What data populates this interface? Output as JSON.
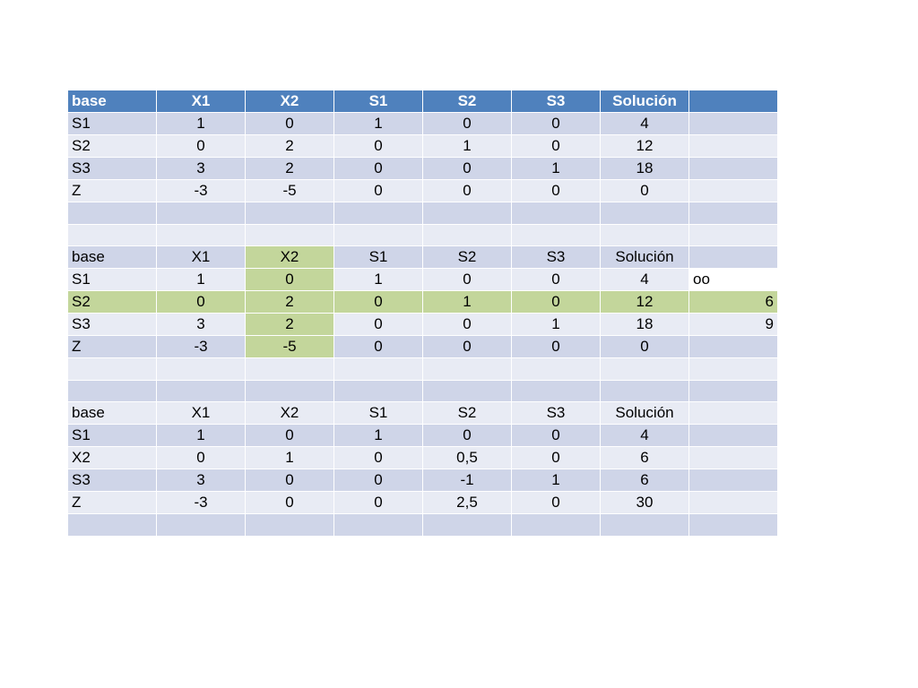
{
  "colors": {
    "header_bg": "#4f81bd",
    "header_text": "#ffffff",
    "band_dark": "#cfd5e8",
    "band_light": "#e8ebf4",
    "highlight_green": "#c3d69b"
  },
  "rows": [
    {
      "kind": "header",
      "cells": [
        "base",
        "X1",
        "X2",
        "S1",
        "S2",
        "S3",
        "Solución",
        ""
      ]
    },
    {
      "kind": "data",
      "cells": [
        "S1",
        "1",
        "0",
        "1",
        "0",
        "0",
        "4",
        ""
      ]
    },
    {
      "kind": "data",
      "cells": [
        "S2",
        "0",
        "2",
        "0",
        "1",
        "0",
        "12",
        ""
      ]
    },
    {
      "kind": "data",
      "cells": [
        "S3",
        "3",
        "2",
        "0",
        "0",
        "1",
        "18",
        ""
      ]
    },
    {
      "kind": "data",
      "cells": [
        "Z",
        "-3",
        "-5",
        "0",
        "0",
        "0",
        "0",
        ""
      ]
    },
    {
      "kind": "blank",
      "cells": [
        "",
        "",
        "",
        "",
        "",
        "",
        "",
        ""
      ]
    },
    {
      "kind": "blank",
      "cells": [
        "",
        "",
        "",
        "",
        "",
        "",
        "",
        ""
      ]
    },
    {
      "kind": "data",
      "cells": [
        "base",
        "X1",
        "X2",
        "S1",
        "S2",
        "S3",
        "Solución",
        ""
      ],
      "highlight": [
        2
      ]
    },
    {
      "kind": "data",
      "cells": [
        "S1",
        "1",
        "0",
        "1",
        "0",
        "0",
        "4",
        "oo"
      ],
      "highlight": [
        2
      ],
      "no_bg": [
        7
      ],
      "last_align": "left"
    },
    {
      "kind": "data",
      "cells": [
        "S2",
        "0",
        "2",
        "0",
        "1",
        "0",
        "12",
        "6"
      ],
      "highlight": [
        0,
        1,
        2,
        3,
        4,
        5,
        6,
        7
      ],
      "last_align": "right"
    },
    {
      "kind": "data",
      "cells": [
        "S3",
        "3",
        "2",
        "0",
        "0",
        "1",
        "18",
        "9"
      ],
      "highlight": [
        2
      ],
      "last_align": "right"
    },
    {
      "kind": "data",
      "cells": [
        "Z",
        "-3",
        "-5",
        "0",
        "0",
        "0",
        "0",
        ""
      ],
      "highlight": [
        2
      ]
    },
    {
      "kind": "blank",
      "cells": [
        "",
        "",
        "",
        "",
        "",
        "",
        "",
        ""
      ]
    },
    {
      "kind": "blank",
      "cells": [
        "",
        "",
        "",
        "",
        "",
        "",
        "",
        ""
      ]
    },
    {
      "kind": "data",
      "cells": [
        "base",
        "X1",
        "X2",
        "S1",
        "S2",
        "S3",
        "Solución",
        ""
      ]
    },
    {
      "kind": "data",
      "cells": [
        "S1",
        "1",
        "0",
        "1",
        "0",
        "0",
        "4",
        ""
      ]
    },
    {
      "kind": "data",
      "cells": [
        "X2",
        "0",
        "1",
        "0",
        "0,5",
        "0",
        "6",
        ""
      ]
    },
    {
      "kind": "data",
      "cells": [
        "S3",
        "3",
        "0",
        "0",
        "-1",
        "1",
        "6",
        ""
      ]
    },
    {
      "kind": "data",
      "cells": [
        "Z",
        "-3",
        "0",
        "0",
        "2,5",
        "0",
        "30",
        ""
      ]
    },
    {
      "kind": "blank",
      "cells": [
        "",
        "",
        "",
        "",
        "",
        "",
        "",
        ""
      ]
    }
  ]
}
